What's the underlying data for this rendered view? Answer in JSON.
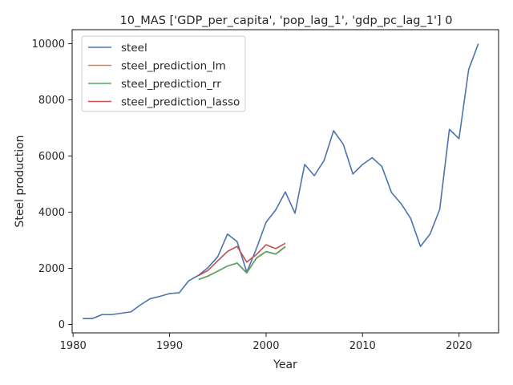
{
  "chart_data": {
    "type": "line",
    "title": "10_MAS ['GDP_per_capita', 'pop_lag_1', 'gdp_pc_lag_1'] 0",
    "xlabel": "Year",
    "ylabel": "Steel production",
    "xlim": [
      1979.9,
      2024.1
    ],
    "ylim": [
      -300,
      10500
    ],
    "x_ticks": [
      1980,
      1990,
      2000,
      2010,
      2020
    ],
    "y_ticks": [
      0,
      2000,
      4000,
      6000,
      8000,
      10000
    ],
    "grid": false,
    "legend_position": "top-left",
    "series": [
      {
        "name": "steel",
        "color": "#4c72b0",
        "x": [
          1981,
          1982,
          1983,
          1984,
          1985,
          1986,
          1987,
          1988,
          1989,
          1990,
          1991,
          1992,
          1993,
          1994,
          1995,
          1996,
          1997,
          1998,
          1999,
          2000,
          2001,
          2002,
          2003,
          2004,
          2005,
          2006,
          2007,
          2008,
          2009,
          2010,
          2011,
          2012,
          2013,
          2014,
          2015,
          2016,
          2017,
          2018,
          2019,
          2020,
          2021,
          2022
        ],
        "y": [
          210,
          210,
          350,
          350,
          400,
          450,
          700,
          920,
          1000,
          1100,
          1130,
          1560,
          1750,
          2030,
          2420,
          3220,
          2950,
          1860,
          2700,
          3640,
          4080,
          4720,
          3960,
          5700,
          5300,
          5830,
          6900,
          6420,
          5360,
          5700,
          5940,
          5630,
          4700,
          4300,
          3770,
          2780,
          3220,
          4100,
          6950,
          6620,
          9080,
          10000
        ]
      },
      {
        "name": "steel_prediction_lm",
        "color": "#dd8452",
        "x": [
          1993,
          1994,
          1995,
          1996,
          1997,
          1998,
          1999,
          2000,
          2001,
          2002
        ],
        "y": [
          1600,
          1720,
          1900,
          2080,
          2180,
          1830,
          2360,
          2590,
          2500,
          2760
        ]
      },
      {
        "name": "steel_prediction_rr",
        "color": "#55a868",
        "x": [
          1993,
          1994,
          1995,
          1996,
          1997,
          1998,
          1999,
          2000,
          2001,
          2002
        ],
        "y": [
          1600,
          1730,
          1900,
          2080,
          2190,
          1840,
          2370,
          2600,
          2510,
          2780
        ]
      },
      {
        "name": "steel_prediction_lasso",
        "color": "#c44e52",
        "x": [
          1993,
          1994,
          1995,
          1996,
          1997,
          1998,
          1999,
          2000,
          2001,
          2002
        ],
        "y": [
          1740,
          1930,
          2270,
          2600,
          2780,
          2220,
          2490,
          2840,
          2700,
          2890
        ]
      }
    ]
  }
}
